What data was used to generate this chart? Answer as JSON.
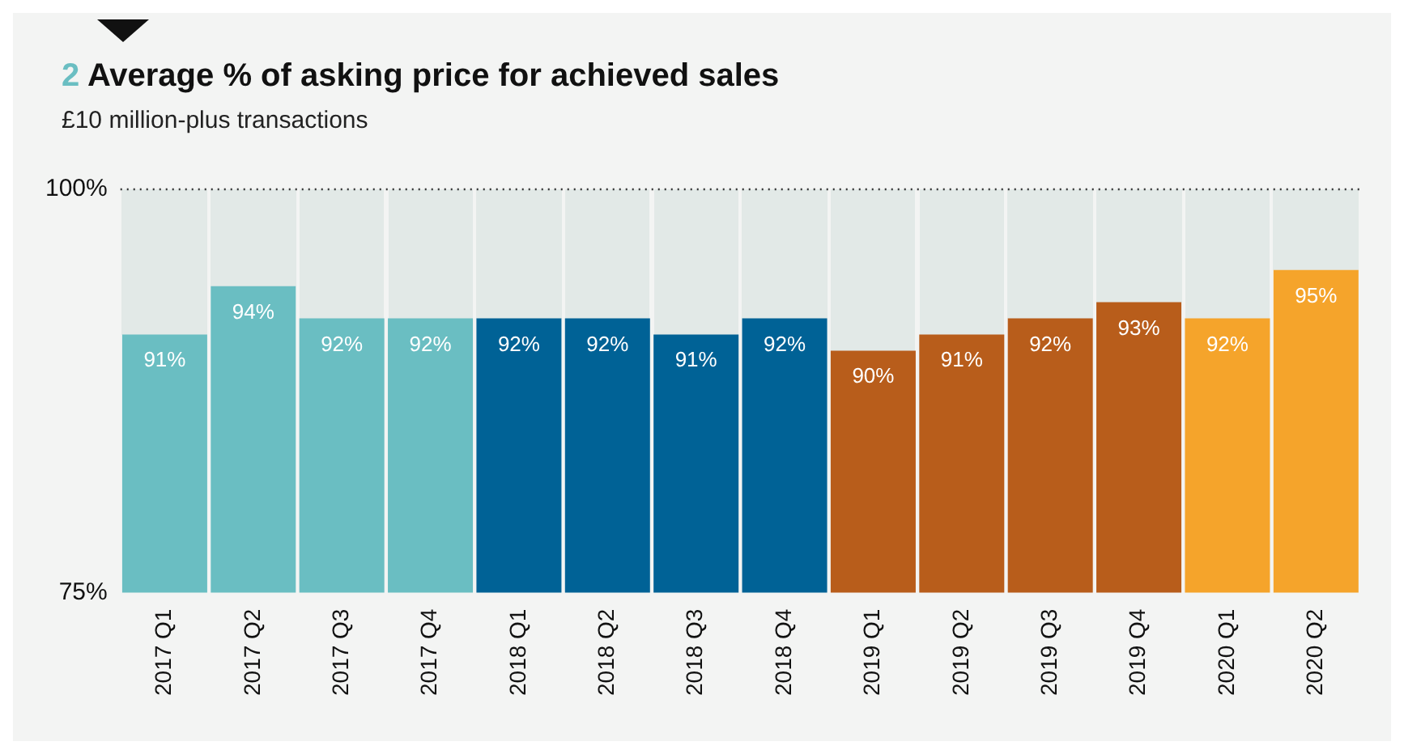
{
  "chart_data": {
    "type": "bar",
    "title": "2 Average % of asking price for achieved sales",
    "subtitle": "£10 million-plus transactions",
    "categories": [
      "2017 Q1",
      "2017 Q2",
      "2017 Q3",
      "2017 Q4",
      "2018 Q1",
      "2018 Q2",
      "2018 Q3",
      "2018 Q4",
      "2019 Q1",
      "2019 Q2",
      "2019 Q3",
      "2019 Q4",
      "2020 Q1",
      "2020 Q2"
    ],
    "series": [
      {
        "colors": [
          "#6abec2",
          "#6abec2",
          "#6abec2",
          "#6abec2",
          "#006296",
          "#006296",
          "#006296",
          "#006296",
          "#b85d1b",
          "#b85d1b",
          "#b85d1b",
          "#b85d1b",
          "#f5a42b",
          "#f5a42b"
        ],
        "values": [
          91,
          94,
          92,
          92,
          92,
          92,
          91,
          92,
          90,
          91,
          92,
          93,
          92,
          95
        ],
        "value_labels": [
          "91%",
          "94%",
          "92%",
          "92%",
          "92%",
          "92%",
          "91%",
          "92%",
          "90%",
          "91%",
          "92%",
          "93%",
          "92%",
          "95%"
        ]
      }
    ],
    "ylim": [
      75,
      100
    ],
    "yticks": [
      {
        "value": 75,
        "label": "75%"
      },
      {
        "value": 100,
        "label": "100%"
      }
    ],
    "grid": false,
    "legend": false,
    "ref_lines": [
      {
        "axis": "y",
        "value": 100,
        "line_style": "dotted",
        "color": "#333333"
      }
    ]
  }
}
